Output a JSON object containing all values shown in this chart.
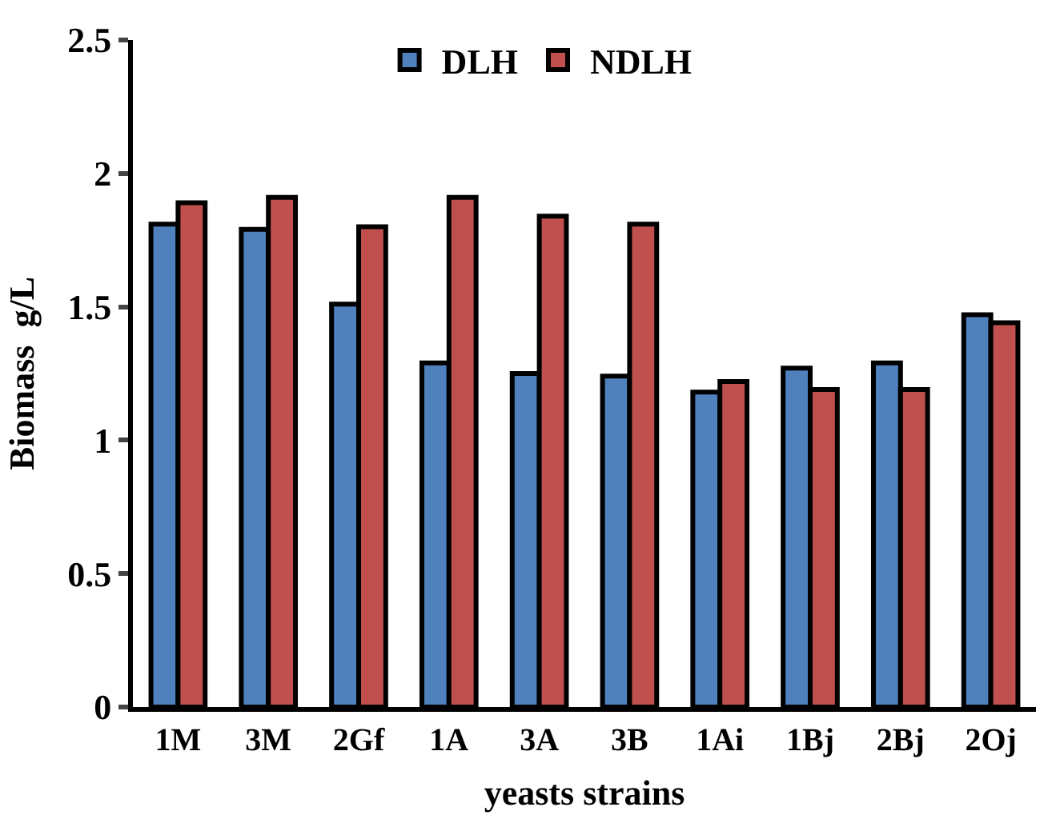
{
  "chart_data": {
    "type": "bar",
    "xlabel": "yeasts strains",
    "ylabel": "Biomass  g/L",
    "categories": [
      "1M",
      "3M",
      "2Gf",
      "1A",
      "3A",
      "3B",
      "1Ai",
      "1Bj",
      "2Bj",
      "2Oj"
    ],
    "series": [
      {
        "name": "DLH",
        "color": "#4f81bd",
        "values": [
          1.81,
          1.79,
          1.51,
          1.29,
          1.25,
          1.24,
          1.18,
          1.27,
          1.29,
          1.47
        ]
      },
      {
        "name": "NDLH",
        "color": "#c0504d",
        "values": [
          1.89,
          1.91,
          1.8,
          1.91,
          1.84,
          1.81,
          1.22,
          1.19,
          1.19,
          1.44
        ]
      }
    ],
    "ylim": [
      0,
      2.5
    ],
    "yticks": [
      0,
      0.5,
      1,
      1.5,
      2,
      2.5
    ],
    "legend": "top"
  }
}
